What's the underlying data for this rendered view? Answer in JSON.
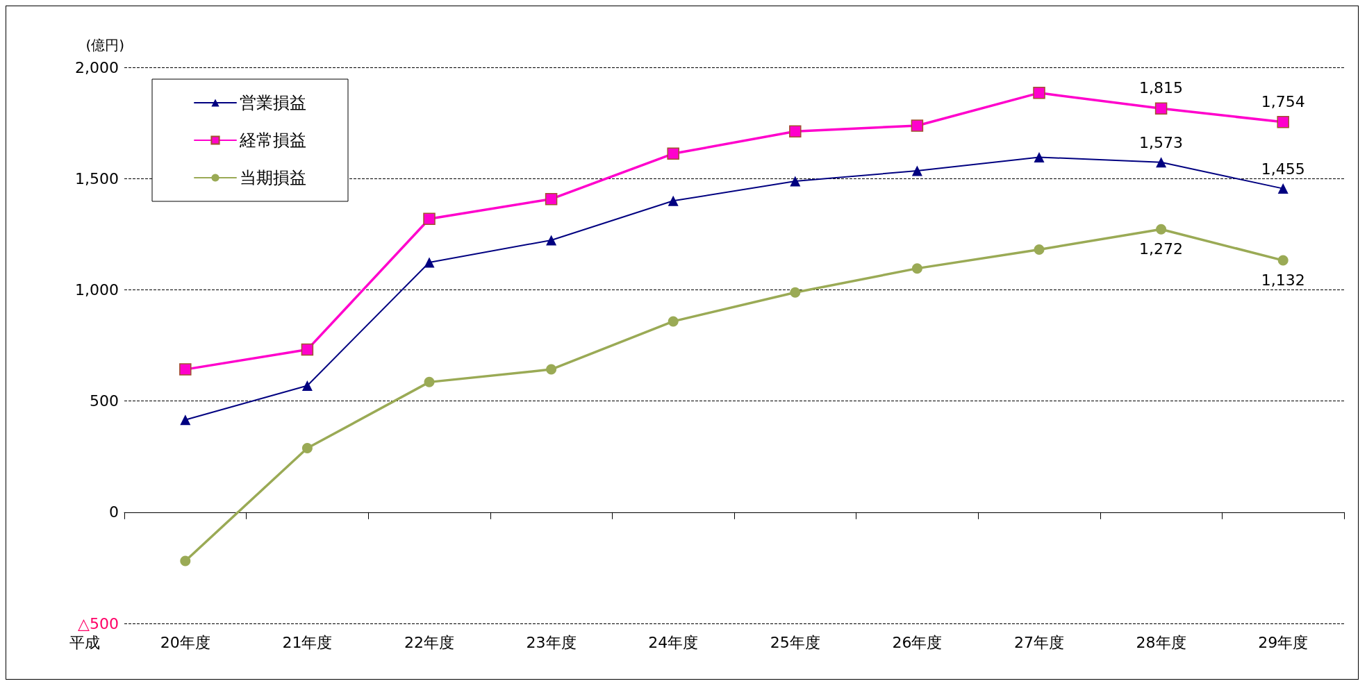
{
  "chart_data": {
    "type": "line",
    "ylabel": "(億円)",
    "xlabel": "平成",
    "categories": [
      "20年度",
      "21年度",
      "22年度",
      "23年度",
      "24年度",
      "25年度",
      "26年度",
      "27年度",
      "28年度",
      "29年度"
    ],
    "series": [
      {
        "name": "営業損益",
        "color": "#000080",
        "marker": "triangle",
        "values": [
          415,
          569,
          1123,
          1223,
          1400,
          1488,
          1535,
          1596,
          1573,
          1455
        ],
        "value_labels": [
          null,
          null,
          null,
          null,
          null,
          null,
          null,
          null,
          "1,573",
          "1,455"
        ]
      },
      {
        "name": "経常損益",
        "color": "#ff00cc",
        "marker": "square",
        "values": [
          642,
          731,
          1319,
          1408,
          1612,
          1712,
          1738,
          1885,
          1815,
          1754
        ],
        "value_labels": [
          null,
          null,
          null,
          null,
          null,
          null,
          null,
          null,
          "1,815",
          "1,754"
        ]
      },
      {
        "name": "当期損益",
        "color": "#9aaa55",
        "marker": "circle",
        "values": [
          -219,
          288,
          585,
          642,
          858,
          988,
          1096,
          1181,
          1272,
          1132
        ],
        "value_labels": [
          null,
          null,
          null,
          null,
          null,
          null,
          null,
          null,
          "1,272",
          "1,132"
        ]
      }
    ],
    "ylim": [
      -500,
      2000
    ],
    "yticks": [
      {
        "value": -500,
        "label": "△500"
      },
      {
        "value": 0,
        "label": "0"
      },
      {
        "value": 500,
        "label": "500"
      },
      {
        "value": 1000,
        "label": "1,000"
      },
      {
        "value": 1500,
        "label": "1,500"
      },
      {
        "value": 2000,
        "label": "2,000"
      }
    ],
    "grid": "y",
    "legend": "top left"
  }
}
